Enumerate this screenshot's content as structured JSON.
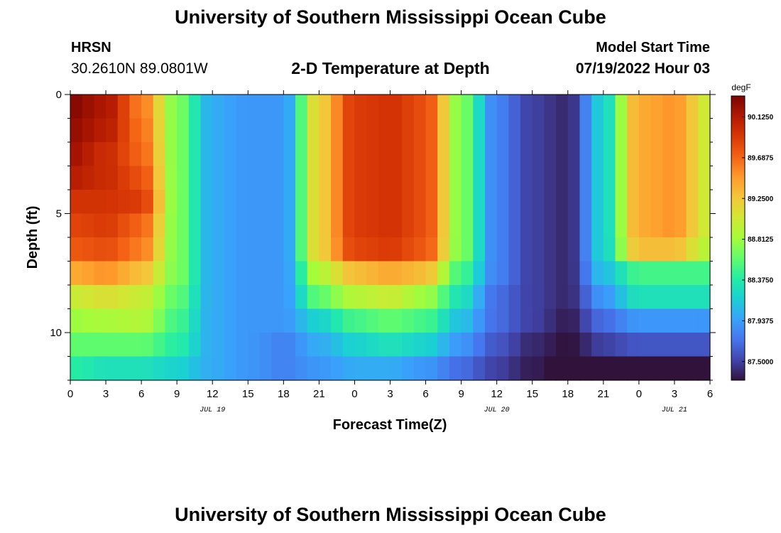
{
  "header": {
    "title": "University of Southern Mississippi Ocean Cube",
    "station": "HRSN",
    "coordinates": "30.2610N  89.0801W",
    "subtitle": "2-D Temperature at Depth",
    "model_start_label": "Model Start Time",
    "model_start_value": "07/19/2022 Hour 03"
  },
  "footer": {
    "title": "University of Southern Mississippi Ocean Cube"
  },
  "colors": {
    "colormap": [
      "#30123b",
      "#4145ab",
      "#4675ed",
      "#39a2fc",
      "#1bcfd4",
      "#24eca6",
      "#61fc6c",
      "#a4fc3b",
      "#d1e834",
      "#f3c63a",
      "#fe9b2d",
      "#f36315",
      "#d93806",
      "#b11901",
      "#7a0402"
    ]
  },
  "chart_data": {
    "type": "heatmap",
    "title": "2-D Temperature at Depth",
    "xlabel": "Forecast Time(Z)",
    "ylabel": "Depth (ft)",
    "x_range_hours": [
      0,
      54
    ],
    "x_tick_hours": [
      0,
      3,
      6,
      9,
      12,
      15,
      18,
      21,
      24,
      27,
      30,
      33,
      36,
      39,
      42,
      45,
      48,
      51,
      54
    ],
    "x_tick_labels": [
      "0",
      "3",
      "6",
      "9",
      "12",
      "15",
      "18",
      "21",
      "0",
      "3",
      "6",
      "9",
      "12",
      "15",
      "18",
      "21",
      "0",
      "3",
      "6"
    ],
    "date_labels": [
      {
        "hour": 12,
        "label": "JUL 19"
      },
      {
        "hour": 36,
        "label": "JUL 20"
      },
      {
        "hour": 51,
        "label": "JUL 21"
      }
    ],
    "y_range_ft": [
      0,
      12
    ],
    "y_tick_values": [
      0,
      5,
      10
    ],
    "y_tick_labels": [
      "0",
      "5",
      "10"
    ],
    "depth_levels_ft": [
      0.5,
      1.5,
      2.5,
      3.5,
      4.5,
      5.5,
      6.5,
      7.5,
      8.5,
      9.5,
      10.5,
      11.5
    ],
    "time_hours": [
      0,
      3,
      6,
      9,
      12,
      15,
      18,
      21,
      24,
      27,
      30,
      33,
      36,
      39,
      42,
      45,
      48,
      51,
      54
    ],
    "temperature_degF": [
      [
        90.3,
        90.15,
        89.6,
        88.7,
        88.0,
        87.9,
        87.9,
        89.2,
        89.9,
        89.95,
        89.8,
        88.7,
        87.8,
        87.5,
        87.4,
        88.2,
        89.4,
        89.5,
        89.0
      ],
      [
        90.25,
        90.1,
        89.65,
        88.7,
        88.0,
        87.9,
        87.9,
        89.2,
        89.9,
        89.95,
        89.8,
        88.7,
        87.8,
        87.5,
        87.4,
        88.2,
        89.4,
        89.5,
        89.0
      ],
      [
        90.2,
        90.0,
        89.7,
        88.7,
        88.0,
        87.9,
        87.9,
        89.2,
        89.9,
        89.95,
        89.8,
        88.7,
        87.8,
        87.5,
        87.4,
        88.2,
        89.4,
        89.5,
        89.0
      ],
      [
        90.1,
        90.0,
        89.8,
        88.7,
        88.0,
        87.9,
        87.9,
        89.2,
        89.9,
        89.95,
        89.8,
        88.7,
        87.8,
        87.5,
        87.4,
        88.2,
        89.4,
        89.5,
        89.0
      ],
      [
        89.95,
        89.95,
        89.9,
        88.7,
        88.0,
        87.9,
        87.9,
        89.2,
        89.9,
        89.95,
        89.8,
        88.7,
        87.8,
        87.5,
        87.4,
        88.2,
        89.4,
        89.5,
        89.0
      ],
      [
        89.85,
        89.9,
        89.7,
        88.7,
        88.0,
        87.9,
        87.9,
        89.2,
        89.9,
        89.95,
        89.8,
        88.7,
        87.8,
        87.5,
        87.4,
        88.2,
        89.4,
        89.5,
        89.0
      ],
      [
        89.75,
        89.8,
        89.6,
        88.7,
        88.0,
        87.9,
        87.9,
        89.2,
        89.85,
        89.9,
        89.75,
        88.7,
        87.8,
        87.5,
        87.4,
        88.2,
        89.3,
        89.3,
        88.9
      ],
      [
        89.4,
        89.5,
        89.3,
        88.7,
        88.0,
        87.9,
        87.9,
        88.9,
        89.3,
        89.4,
        89.3,
        88.5,
        87.8,
        87.5,
        87.4,
        88.1,
        88.5,
        88.5,
        88.5
      ],
      [
        89.0,
        89.1,
        89.0,
        88.6,
        88.0,
        87.9,
        87.9,
        88.6,
        88.9,
        89.0,
        88.8,
        88.3,
        87.7,
        87.5,
        87.4,
        87.9,
        88.3,
        88.3,
        88.3
      ],
      [
        88.8,
        88.85,
        88.9,
        88.5,
        88.0,
        87.9,
        87.9,
        88.2,
        88.5,
        88.6,
        88.5,
        88.1,
        87.7,
        87.5,
        87.35,
        87.7,
        87.9,
        87.9,
        87.9
      ],
      [
        88.6,
        88.6,
        88.6,
        88.4,
        88.0,
        87.9,
        87.8,
        88.0,
        88.2,
        88.3,
        88.2,
        87.9,
        87.6,
        87.4,
        87.3,
        87.5,
        87.6,
        87.6,
        87.6
      ],
      [
        88.4,
        88.3,
        88.3,
        88.2,
        88.0,
        87.9,
        87.8,
        87.9,
        88.0,
        88.0,
        87.9,
        87.7,
        87.5,
        87.35,
        87.25,
        87.3,
        87.3,
        87.3,
        87.3
      ]
    ],
    "colorbar": {
      "unit": "degF",
      "min": 87.3,
      "max": 90.35,
      "tick_values": [
        90.125,
        89.6875,
        89.25,
        88.8125,
        88.375,
        87.9375,
        87.5
      ],
      "tick_labels": [
        "90.1250",
        "89.6875",
        "89.2500",
        "88.8125",
        "88.3750",
        "87.9375",
        "87.5000"
      ]
    }
  }
}
